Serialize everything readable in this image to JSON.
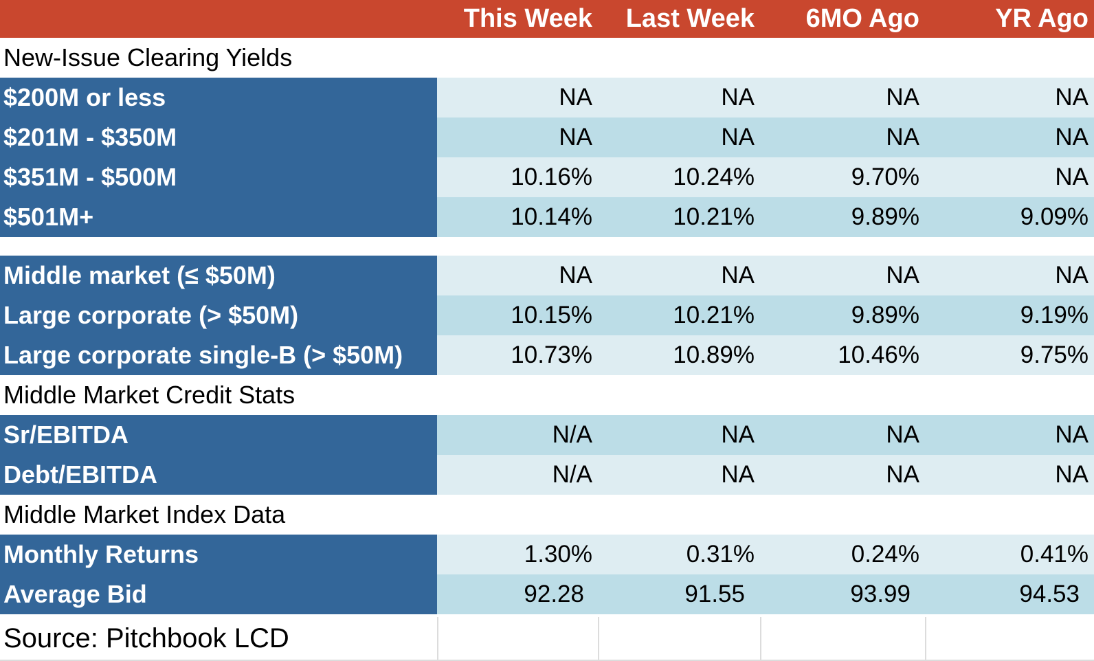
{
  "header": {
    "label": "",
    "columns": [
      "This Week",
      "Last Week",
      "6MO Ago",
      "YR Ago"
    ]
  },
  "sections": {
    "new_issue": "New-Issue Clearing Yields",
    "credit_stats": "Middle Market Credit Stats",
    "index_data": "Middle Market Index Data"
  },
  "rows": [
    {
      "label": "$200M or less",
      "values": [
        "NA",
        "NA",
        "NA",
        "NA"
      ]
    },
    {
      "label": "$201M - $350M",
      "values": [
        "NA",
        "NA",
        "NA",
        "NA"
      ]
    },
    {
      "label": "$351M - $500M",
      "values": [
        "10.16%",
        "10.24%",
        "9.70%",
        "NA"
      ]
    },
    {
      "label": "$501M+",
      "values": [
        "10.14%",
        "10.21%",
        "9.89%",
        "9.09%"
      ]
    },
    {
      "label": "Middle market (≤ $50M)",
      "values": [
        "NA",
        "NA",
        "NA",
        "NA"
      ]
    },
    {
      "label": "Large corporate (> $50M)",
      "values": [
        "10.15%",
        "10.21%",
        "9.89%",
        "9.19%"
      ]
    },
    {
      "label": "Large corporate single-B (> $50M)",
      "values": [
        "10.73%",
        "10.89%",
        "10.46%",
        "9.75%"
      ]
    },
    {
      "label": "Sr/EBITDA",
      "values": [
        "N/A",
        "NA",
        "NA",
        "NA"
      ]
    },
    {
      "label": "Debt/EBITDA",
      "values": [
        "N/A",
        "NA",
        "NA",
        "NA"
      ]
    },
    {
      "label": "Monthly Returns",
      "values": [
        "1.30%",
        "0.31%",
        "0.24%",
        "0.41%"
      ]
    },
    {
      "label": "Average Bid",
      "values": [
        "92.28",
        "91.55",
        "93.99",
        "94.53"
      ]
    }
  ],
  "footer": {
    "source": "Source: Pitchbook LCD"
  },
  "colors": {
    "header_bg": "#c9472e",
    "label_bg": "#336699",
    "row_light": "#deedf2",
    "row_dark": "#bcdde7"
  }
}
